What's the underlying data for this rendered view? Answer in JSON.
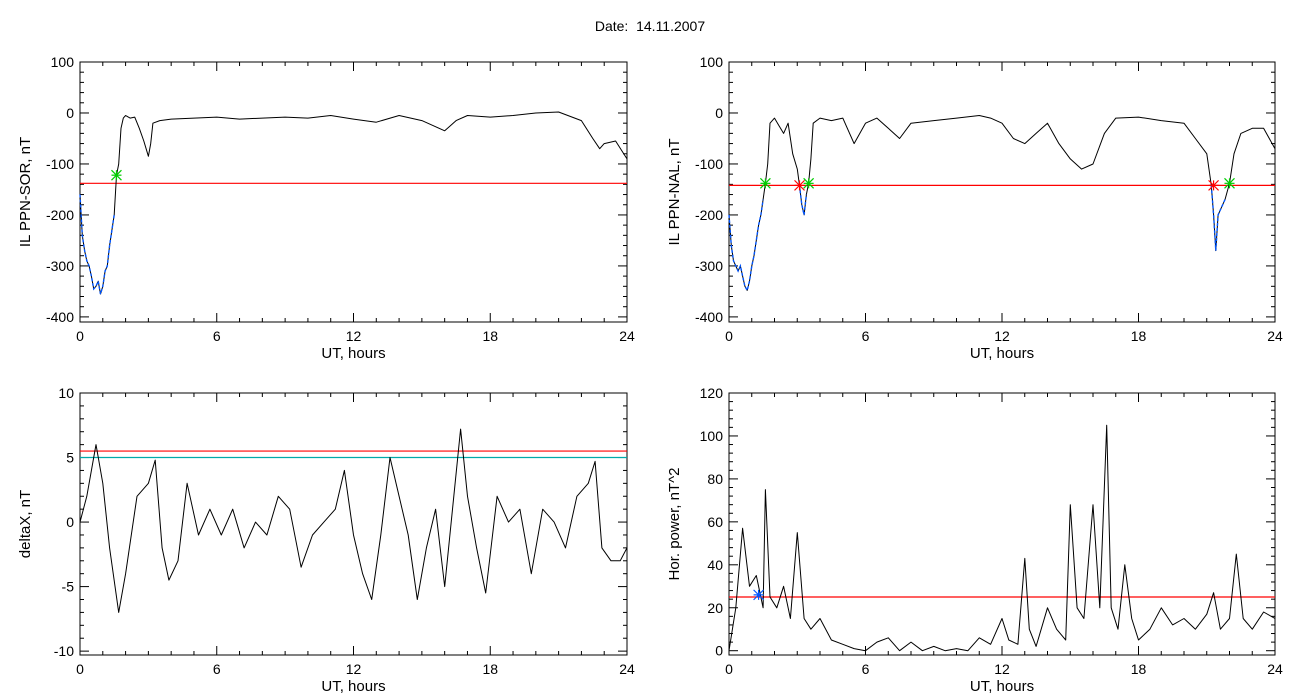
{
  "title": "Date:  14.11.2007",
  "colors": {
    "data": "#000000",
    "threshold": "#ff0000",
    "below": "#0055ff",
    "cyan_line": "#00aaaa",
    "green_marker": "#00cc00",
    "red_marker": "#ff0000"
  },
  "chart_data": [
    {
      "type": "line",
      "xlabel": "UT, hours",
      "ylabel": "IL PPN-SOR, nT",
      "xlim": [
        0,
        24
      ],
      "ylim": [
        -410,
        100
      ],
      "xticks": [
        0,
        6,
        12,
        18,
        24
      ],
      "yticks": [
        -400,
        -300,
        -200,
        -100,
        0,
        100
      ],
      "threshold": -138,
      "markers": {
        "green": [
          [
            1.6,
            -122
          ]
        ],
        "red": []
      },
      "series": [
        {
          "values": [
            [
              0,
              -160
            ],
            [
              0.1,
              -240
            ],
            [
              0.2,
              -270
            ],
            [
              0.3,
              -290
            ],
            [
              0.4,
              -300
            ],
            [
              0.5,
              -320
            ],
            [
              0.6,
              -345
            ],
            [
              0.7,
              -340
            ],
            [
              0.8,
              -330
            ],
            [
              0.9,
              -355
            ],
            [
              1.0,
              -340
            ],
            [
              1.1,
              -310
            ],
            [
              1.2,
              -300
            ],
            [
              1.3,
              -260
            ],
            [
              1.4,
              -230
            ],
            [
              1.5,
              -200
            ],
            [
              1.6,
              -122
            ],
            [
              1.7,
              -100
            ],
            [
              1.8,
              -30
            ],
            [
              1.9,
              -10
            ],
            [
              2.0,
              -5
            ],
            [
              2.2,
              -10
            ],
            [
              2.4,
              -8
            ],
            [
              2.6,
              -30
            ],
            [
              2.8,
              -55
            ],
            [
              3.0,
              -85
            ],
            [
              3.1,
              -60
            ],
            [
              3.2,
              -20
            ],
            [
              3.5,
              -15
            ],
            [
              4,
              -12
            ],
            [
              5,
              -10
            ],
            [
              6,
              -8
            ],
            [
              7,
              -12
            ],
            [
              8,
              -10
            ],
            [
              9,
              -8
            ],
            [
              10,
              -10
            ],
            [
              11,
              -5
            ],
            [
              12,
              -12
            ],
            [
              13,
              -18
            ],
            [
              14,
              -5
            ],
            [
              15,
              -15
            ],
            [
              15.5,
              -25
            ],
            [
              16,
              -35
            ],
            [
              16.5,
              -15
            ],
            [
              17,
              -5
            ],
            [
              18,
              -8
            ],
            [
              19,
              -5
            ],
            [
              20,
              0
            ],
            [
              21,
              2
            ],
            [
              22,
              -15
            ],
            [
              22.5,
              -50
            ],
            [
              22.8,
              -70
            ],
            [
              23,
              -60
            ],
            [
              23.5,
              -55
            ],
            [
              24,
              -90
            ]
          ]
        }
      ]
    },
    {
      "type": "line",
      "xlabel": "UT, hours",
      "ylabel": "IL PPN-NAL, nT",
      "xlim": [
        0,
        24
      ],
      "ylim": [
        -410,
        100
      ],
      "xticks": [
        0,
        6,
        12,
        18,
        24
      ],
      "yticks": [
        -400,
        -300,
        -200,
        -100,
        0,
        100
      ],
      "threshold": -142,
      "markers": {
        "green": [
          [
            1.6,
            -138
          ],
          [
            3.5,
            -138
          ],
          [
            22.0,
            -138
          ]
        ],
        "red": [
          [
            3.1,
            -142
          ],
          [
            21.3,
            -142
          ]
        ]
      },
      "series": [
        {
          "values": [
            [
              0,
              -200
            ],
            [
              0.1,
              -260
            ],
            [
              0.2,
              -290
            ],
            [
              0.3,
              -300
            ],
            [
              0.4,
              -310
            ],
            [
              0.5,
              -300
            ],
            [
              0.6,
              -320
            ],
            [
              0.7,
              -340
            ],
            [
              0.8,
              -348
            ],
            [
              0.9,
              -330
            ],
            [
              1.0,
              -300
            ],
            [
              1.1,
              -280
            ],
            [
              1.2,
              -250
            ],
            [
              1.3,
              -220
            ],
            [
              1.4,
              -200
            ],
            [
              1.5,
              -170
            ],
            [
              1.6,
              -138
            ],
            [
              1.7,
              -100
            ],
            [
              1.8,
              -20
            ],
            [
              2.0,
              -10
            ],
            [
              2.2,
              -25
            ],
            [
              2.4,
              -40
            ],
            [
              2.6,
              -20
            ],
            [
              2.8,
              -80
            ],
            [
              3.0,
              -110
            ],
            [
              3.1,
              -142
            ],
            [
              3.2,
              -180
            ],
            [
              3.3,
              -200
            ],
            [
              3.4,
              -160
            ],
            [
              3.5,
              -138
            ],
            [
              3.6,
              -90
            ],
            [
              3.7,
              -20
            ],
            [
              4,
              -10
            ],
            [
              4.5,
              -15
            ],
            [
              5,
              -10
            ],
            [
              5.5,
              -60
            ],
            [
              6,
              -20
            ],
            [
              6.5,
              -10
            ],
            [
              7,
              -30
            ],
            [
              7.5,
              -50
            ],
            [
              8,
              -20
            ],
            [
              9,
              -15
            ],
            [
              10,
              -10
            ],
            [
              11,
              -5
            ],
            [
              11.5,
              -10
            ],
            [
              12,
              -20
            ],
            [
              12.5,
              -50
            ],
            [
              13,
              -60
            ],
            [
              13.5,
              -40
            ],
            [
              14,
              -20
            ],
            [
              14.5,
              -60
            ],
            [
              15,
              -90
            ],
            [
              15.5,
              -110
            ],
            [
              16,
              -100
            ],
            [
              16.5,
              -40
            ],
            [
              17,
              -10
            ],
            [
              18,
              -8
            ],
            [
              19,
              -15
            ],
            [
              20,
              -20
            ],
            [
              20.5,
              -50
            ],
            [
              21,
              -80
            ],
            [
              21.2,
              -142
            ],
            [
              21.3,
              -200
            ],
            [
              21.4,
              -270
            ],
            [
              21.5,
              -200
            ],
            [
              21.8,
              -170
            ],
            [
              22.0,
              -138
            ],
            [
              22.2,
              -80
            ],
            [
              22.5,
              -40
            ],
            [
              23,
              -30
            ],
            [
              23.5,
              -30
            ],
            [
              24,
              -70
            ]
          ]
        }
      ]
    },
    {
      "type": "line",
      "xlabel": "UT, hours",
      "ylabel": "deltaX, nT",
      "xlim": [
        0,
        24
      ],
      "ylim": [
        -10.3,
        10
      ],
      "xticks": [
        0,
        6,
        12,
        18,
        24
      ],
      "yticks": [
        -10,
        -5,
        0,
        5,
        10
      ],
      "threshold": 5.5,
      "threshold2": 5.0,
      "series": [
        {
          "values": [
            [
              0,
              0
            ],
            [
              0.3,
              2
            ],
            [
              0.7,
              6
            ],
            [
              1.0,
              3
            ],
            [
              1.3,
              -2
            ],
            [
              1.7,
              -7
            ],
            [
              2.0,
              -4
            ],
            [
              2.5,
              2
            ],
            [
              3.0,
              3
            ],
            [
              3.3,
              4.8
            ],
            [
              3.6,
              -2
            ],
            [
              3.9,
              -4.5
            ],
            [
              4.3,
              -3
            ],
            [
              4.7,
              3
            ],
            [
              5.2,
              -1
            ],
            [
              5.7,
              1
            ],
            [
              6.2,
              -1
            ],
            [
              6.7,
              1
            ],
            [
              7.2,
              -2
            ],
            [
              7.7,
              0
            ],
            [
              8.2,
              -1
            ],
            [
              8.7,
              2
            ],
            [
              9.2,
              1
            ],
            [
              9.7,
              -3.5
            ],
            [
              10.2,
              -1
            ],
            [
              10.7,
              0
            ],
            [
              11.2,
              1
            ],
            [
              11.6,
              4
            ],
            [
              12.0,
              -1
            ],
            [
              12.4,
              -4
            ],
            [
              12.8,
              -6
            ],
            [
              13.2,
              -1
            ],
            [
              13.6,
              5
            ],
            [
              14.0,
              2
            ],
            [
              14.4,
              -1
            ],
            [
              14.8,
              -6
            ],
            [
              15.2,
              -2
            ],
            [
              15.6,
              1
            ],
            [
              16.0,
              -5
            ],
            [
              16.4,
              2
            ],
            [
              16.7,
              7.2
            ],
            [
              17.0,
              2
            ],
            [
              17.4,
              -2
            ],
            [
              17.8,
              -5.5
            ],
            [
              18.3,
              2
            ],
            [
              18.8,
              0
            ],
            [
              19.3,
              1
            ],
            [
              19.8,
              -4
            ],
            [
              20.3,
              1
            ],
            [
              20.8,
              0
            ],
            [
              21.3,
              -2
            ],
            [
              21.8,
              2
            ],
            [
              22.3,
              3
            ],
            [
              22.6,
              4.7
            ],
            [
              22.9,
              -2
            ],
            [
              23.3,
              -3
            ],
            [
              23.7,
              -3
            ],
            [
              24,
              -2
            ]
          ]
        }
      ]
    },
    {
      "type": "line",
      "xlabel": "UT, hours",
      "ylabel": "Hor. power, nT^2",
      "xlim": [
        0,
        24
      ],
      "ylim": [
        -2,
        120
      ],
      "xticks": [
        0,
        6,
        12,
        18,
        24
      ],
      "yticks": [
        0,
        20,
        40,
        60,
        80,
        100,
        120
      ],
      "threshold": 25,
      "markers": {
        "blue": [
          [
            1.3,
            26
          ]
        ]
      },
      "series": [
        {
          "values": [
            [
              0,
              0
            ],
            [
              0.3,
              20
            ],
            [
              0.6,
              57
            ],
            [
              0.9,
              30
            ],
            [
              1.2,
              35
            ],
            [
              1.5,
              20
            ],
            [
              1.6,
              75
            ],
            [
              1.8,
              25
            ],
            [
              2.1,
              20
            ],
            [
              2.4,
              30
            ],
            [
              2.7,
              15
            ],
            [
              3.0,
              55
            ],
            [
              3.3,
              15
            ],
            [
              3.6,
              10
            ],
            [
              4,
              15
            ],
            [
              4.5,
              5
            ],
            [
              5,
              3
            ],
            [
              5.5,
              1
            ],
            [
              6,
              0
            ],
            [
              6.5,
              4
            ],
            [
              7,
              6
            ],
            [
              7.5,
              0
            ],
            [
              8,
              4
            ],
            [
              8.5,
              0
            ],
            [
              9,
              2
            ],
            [
              9.5,
              0
            ],
            [
              10,
              1
            ],
            [
              10.5,
              0
            ],
            [
              11,
              6
            ],
            [
              11.5,
              3
            ],
            [
              12,
              15
            ],
            [
              12.3,
              5
            ],
            [
              12.7,
              3
            ],
            [
              13.0,
              43
            ],
            [
              13.2,
              10
            ],
            [
              13.5,
              2
            ],
            [
              14,
              20
            ],
            [
              14.4,
              10
            ],
            [
              14.8,
              5
            ],
            [
              15.0,
              68
            ],
            [
              15.3,
              20
            ],
            [
              15.6,
              15
            ],
            [
              16.0,
              68
            ],
            [
              16.3,
              20
            ],
            [
              16.6,
              105
            ],
            [
              16.8,
              20
            ],
            [
              17.1,
              10
            ],
            [
              17.4,
              40
            ],
            [
              17.7,
              15
            ],
            [
              18.0,
              5
            ],
            [
              18.5,
              10
            ],
            [
              19,
              20
            ],
            [
              19.5,
              12
            ],
            [
              20,
              15
            ],
            [
              20.5,
              10
            ],
            [
              21.0,
              17
            ],
            [
              21.3,
              27
            ],
            [
              21.6,
              10
            ],
            [
              22,
              15
            ],
            [
              22.3,
              45
            ],
            [
              22.6,
              15
            ],
            [
              23,
              10
            ],
            [
              23.5,
              18
            ],
            [
              24,
              15
            ]
          ]
        }
      ]
    }
  ]
}
